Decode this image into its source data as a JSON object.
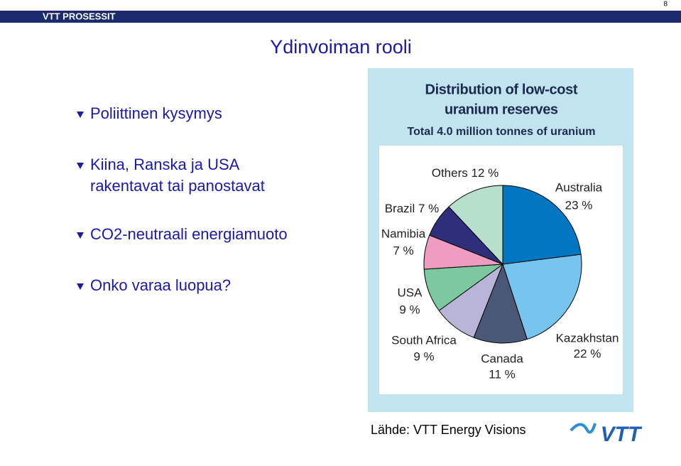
{
  "header": {
    "band": "VTT PROSESSIT",
    "page": "8"
  },
  "title": "Ydinvoiman rooli",
  "bullets": [
    [
      "Poliittinen kysymys"
    ],
    [
      "Kiina, Ranska ja USA",
      "rakentavat tai panostavat"
    ],
    [
      "CO2-neutraali energiamuoto"
    ],
    [
      "Onko varaa luopua?"
    ]
  ],
  "chart_data": {
    "type": "pie",
    "title": [
      "Distribution of low-cost",
      "uranium reserves"
    ],
    "subtitle": "Total 4.0 million tonnes of uranium",
    "categories": [
      "Australia",
      "Kazakhstan",
      "Canada",
      "South Africa",
      "USA",
      "Namibia",
      "Brazil",
      "Others"
    ],
    "values": [
      23,
      22,
      11,
      9,
      9,
      7,
      7,
      12
    ],
    "value_labels": [
      "23 %",
      "22 %",
      "11 %",
      "9 %",
      "9 %",
      "7 %",
      "7 %",
      "12 %"
    ],
    "colors": [
      "#0077c0",
      "#77c4ef",
      "#4a5878",
      "#b9b5d9",
      "#7cc8a0",
      "#f09cc2",
      "#2e2e7a",
      "#b6e0cc"
    ]
  },
  "source": "Lähde: VTT Energy Visions",
  "logo": "VTT"
}
